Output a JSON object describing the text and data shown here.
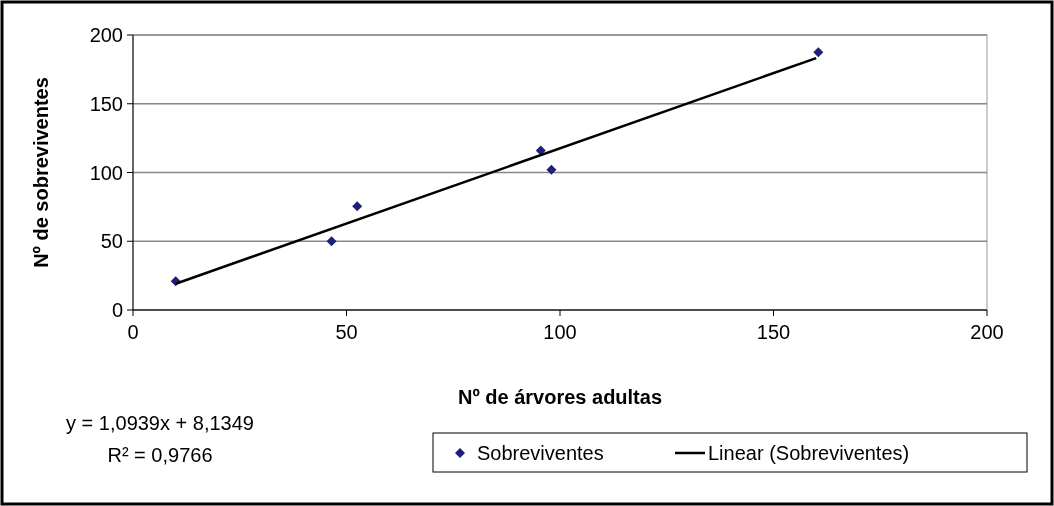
{
  "chart_data": {
    "type": "scatter",
    "xlabel": "Nº de árvores adultas",
    "ylabel": "Nº de sobreviventes",
    "xlim": [
      0,
      200
    ],
    "xticks": [
      0,
      50,
      100,
      150,
      200
    ],
    "ylim": [
      0,
      200
    ],
    "yticks": [
      0,
      50,
      100,
      150,
      200
    ],
    "grid": "y",
    "legend": "bottom right",
    "marker": "diamond",
    "annotations": [
      "y = 1,0939x + 8,1349",
      "R² = 0,9766"
    ],
    "series": [
      {
        "name": "Sobreviventes",
        "color": "#1f1f7a",
        "x": [
          10,
          46.5,
          52.5,
          95.5,
          98,
          160.5
        ],
        "values": [
          21,
          50,
          75.5,
          116,
          102,
          187.5
        ]
      },
      {
        "name": "Linear (Sobreviventes)",
        "type": "line",
        "color": "#000000",
        "marker": "none",
        "line_style": "solid",
        "x": [
          10,
          160
        ],
        "values": [
          19.1,
          183.2
        ]
      }
    ]
  }
}
